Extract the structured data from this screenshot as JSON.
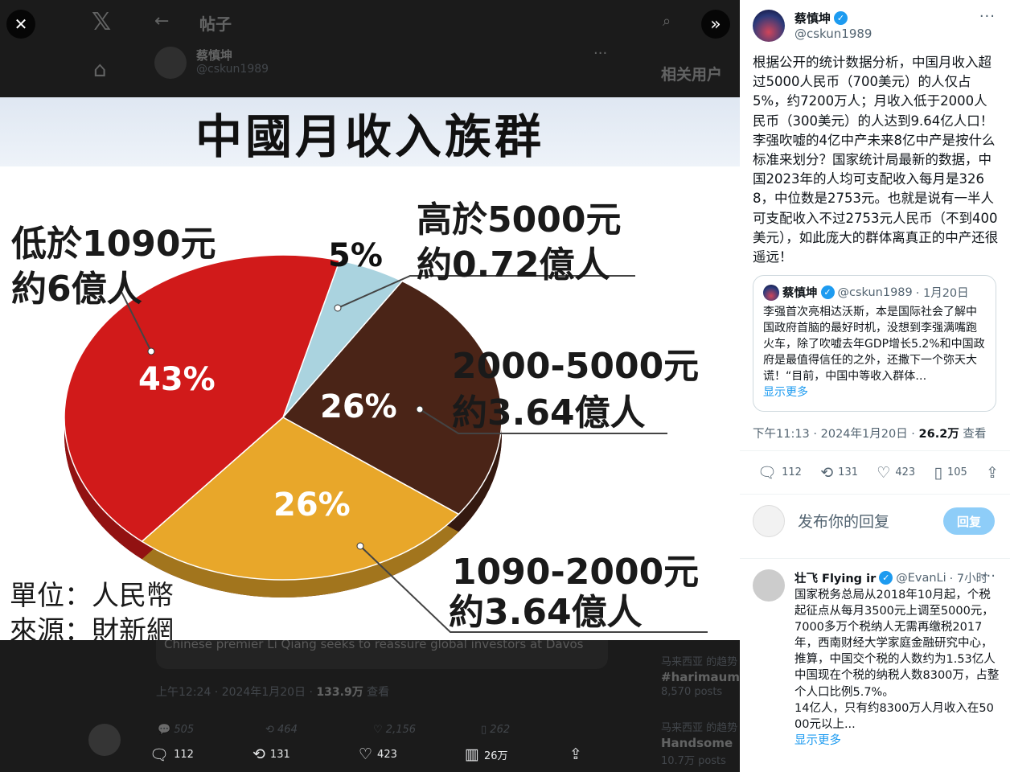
{
  "background_page": {
    "header_title": "帖子",
    "author_name": "蔡慎坤",
    "author_handle": "@cskun1989",
    "related_users": "相关用户",
    "card_text": "Chinese premier Li Qiang seeks to reassure global investors at Davos",
    "timestamp": "上午12:24 · 2024年1月20日 · ",
    "views": "133.9万",
    "views_label": " 查看",
    "actions": {
      "replies": "505",
      "reposts": "464",
      "likes": "2,156",
      "bookmarks": "262"
    },
    "trends": [
      {
        "context": "马来西亚 的趋势",
        "name": "#harimaumal",
        "count": "8,570 posts"
      },
      {
        "context": "马来西亚 的趋势",
        "name": "Handsome",
        "count": "10.7万 posts"
      }
    ]
  },
  "media_bar": {
    "replies": "112",
    "reposts": "131",
    "likes": "423",
    "views": "26万"
  },
  "infographic": {
    "title": "中國月收入族群",
    "unit_label": "單位：人民幣",
    "source_label": "來源：財新網",
    "labels": [
      {
        "range": "高於5000元",
        "people": "約0.72億人"
      },
      {
        "range": "低於1090元",
        "people": "約6億人"
      },
      {
        "range": "2000-5000元",
        "people": "約3.64億人"
      },
      {
        "range": "1090-2000元",
        "people": "約3.64億人"
      }
    ]
  },
  "chart_data": {
    "type": "pie",
    "title": "中國月收入族群",
    "categories": [
      "高於5000元",
      "2000-5000元",
      "1090-2000元",
      "低於1090元"
    ],
    "values": [
      5,
      26,
      26,
      43
    ],
    "value_labels": [
      "5%",
      "26%",
      "26%",
      "43%"
    ],
    "colors": [
      "#aad3df",
      "#4a2417",
      "#e8a72a",
      "#d11a1a"
    ]
  },
  "tweet": {
    "author_name": "蔡慎坤",
    "author_handle": "@cskun1989",
    "text": "根据公开的统计数据分析，中国月收入超过5000人民币（700美元）的人仅占5%，约7200万人；月收入低于2000人民币（300美元）的人达到9.64亿人口！李强吹嘘的4亿中产未来8亿中产是按什么标准来划分？国家统计局最新的数据，中国2023年的人均可支配收入每月是3268，中位数是2753元。也就是说有一半人可支配收入不过2753元人民币（不到400美元），如此庞大的群体离真正的中产还很遥远！",
    "quote": {
      "author_name": "蔡慎坤",
      "author_handle": "@cskun1989",
      "date": "· 1月20日",
      "text": "李强首次亮相达沃斯，本是国际社会了解中国政府首脑的最好时机，没想到李强满嘴跑火车，除了吹嘘去年GDP增长5.2%和中国政府是最值得信任的之外，还撒下一个弥天大谎！“目前，中国中等收入群体…",
      "show_more": "显示更多"
    },
    "timestamp": "下午11:13 · 2024年1月20日 · ",
    "views": "26.2万",
    "views_label": " 查看",
    "actions": {
      "replies": "112",
      "reposts": "131",
      "likes": "423",
      "bookmarks": "105"
    },
    "reply_placeholder": "发布你的回复",
    "reply_button": "回复"
  },
  "reply": {
    "author_name": "壮飞 Flying ir",
    "author_handle": "@EvanLi",
    "time": "· 7小时",
    "paragraphs": [
      "国家税务总局从2018年10月起，个税起征点从每月3500元上调至5000元，7000多万个税纳人无需再缴税2017年，西南财经大学家庭金融研究中心，推算，中国交个税的人数约为1.53亿人",
      "中国现在个税的纳税人数8300万，占整个人口比例5.7%。",
      "14亿人，只有约8300万人月收入在5000元以上..."
    ],
    "show_more": "显示更多"
  }
}
